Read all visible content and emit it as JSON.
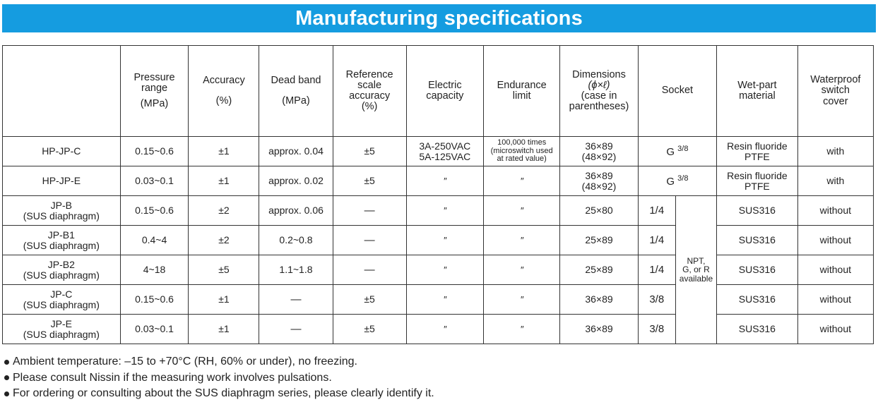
{
  "title": "Manufacturing specifications",
  "table": {
    "headers": {
      "pressure": [
        "Pressure",
        "range",
        "(MPa)"
      ],
      "accuracy": [
        "Accuracy",
        "(%)"
      ],
      "deadband": [
        "Dead band",
        "(MPa)"
      ],
      "ref": [
        "Reference",
        "scale",
        "accuracy",
        "(%)"
      ],
      "electric": [
        "Electric",
        "capacity"
      ],
      "endurance": [
        "Endurance",
        "limit"
      ],
      "dimensions": [
        "Dimensions",
        "(ϕ×ℓ)",
        "(case in",
        "parentheses)"
      ],
      "socket": "Socket",
      "wetpart": [
        "Wet-part",
        "material"
      ],
      "waterproof": [
        "Waterproof",
        "switch",
        "cover"
      ]
    },
    "rows": [
      {
        "model": [
          "HP-JP-C"
        ],
        "pressure": "0.15~0.6",
        "accuracy": "±1",
        "deadband": "approx. 0.04",
        "ref": "±5",
        "electric": [
          "3A-250VAC",
          "5A-125VAC"
        ],
        "endurance": [
          "100,000 times",
          "(microswitch used",
          "at rated value)"
        ],
        "dimensions": [
          "36×89",
          "(48×92)"
        ],
        "socket_g": "G",
        "socket_frac": "3/8",
        "wetpart": [
          "Resin fluoride",
          "PTFE"
        ],
        "cover": "with"
      },
      {
        "model": [
          "HP-JP-E"
        ],
        "pressure": "0.03~0.1",
        "accuracy": "±1",
        "deadband": "approx. 0.02",
        "ref": "±5",
        "electric": "″",
        "endurance": "″",
        "dimensions": [
          "36×89",
          "(48×92)"
        ],
        "socket_g": "G",
        "socket_frac": "3/8",
        "wetpart": [
          "Resin fluoride",
          "PTFE"
        ],
        "cover": "with"
      },
      {
        "model": [
          "JP-B",
          "(SUS diaphragm)"
        ],
        "pressure": "0.15~0.6",
        "accuracy": "±2",
        "deadband": "approx. 0.06",
        "ref": "—",
        "electric": "″",
        "endurance": "″",
        "dimensions": "25×80",
        "socket_frac": "1/4",
        "wetpart": "SUS316",
        "cover": "without"
      },
      {
        "model": [
          "JP-B1",
          "(SUS diaphragm)"
        ],
        "pressure": "0.4~4",
        "accuracy": "±2",
        "deadband": "0.2~0.8",
        "ref": "—",
        "electric": "″",
        "endurance": "″",
        "dimensions": "25×89",
        "socket_frac": "1/4",
        "wetpart": "SUS316",
        "cover": "without"
      },
      {
        "model": [
          "JP-B2",
          "(SUS diaphragm)"
        ],
        "pressure": "4~18",
        "accuracy": "±5",
        "deadband": "1.1~1.8",
        "ref": "—",
        "electric": "″",
        "endurance": "″",
        "dimensions": "25×89",
        "socket_frac": "1/4",
        "wetpart": "SUS316",
        "cover": "without"
      },
      {
        "model": [
          "JP-C",
          "(SUS diaphragm)"
        ],
        "pressure": "0.15~0.6",
        "accuracy": "±1",
        "deadband": "—",
        "ref": "±5",
        "electric": "″",
        "endurance": "″",
        "dimensions": "36×89",
        "socket_frac": "3/8",
        "wetpart": "SUS316",
        "cover": "without"
      },
      {
        "model": [
          "JP-E",
          "(SUS diaphragm)"
        ],
        "pressure": "0.03~0.1",
        "accuracy": "±1",
        "deadband": "—",
        "ref": "±5",
        "electric": "″",
        "endurance": "″",
        "dimensions": "36×89",
        "socket_frac": "3/8",
        "wetpart": "SUS316",
        "cover": "without"
      }
    ],
    "socket_merged": [
      "NPT,",
      "G, or R",
      "available"
    ]
  },
  "notes": [
    "Ambient temperature: –15 to +70°C (RH, 60% or under), no freezing.",
    "Please consult Nissin if the measuring work involves pulsations.",
    "For ordering or consulting about the SUS diaphragm series, please clearly identify it."
  ],
  "colors": {
    "banner": "#159ce0",
    "banner_text": "#ffffff",
    "border": "#333333"
  }
}
